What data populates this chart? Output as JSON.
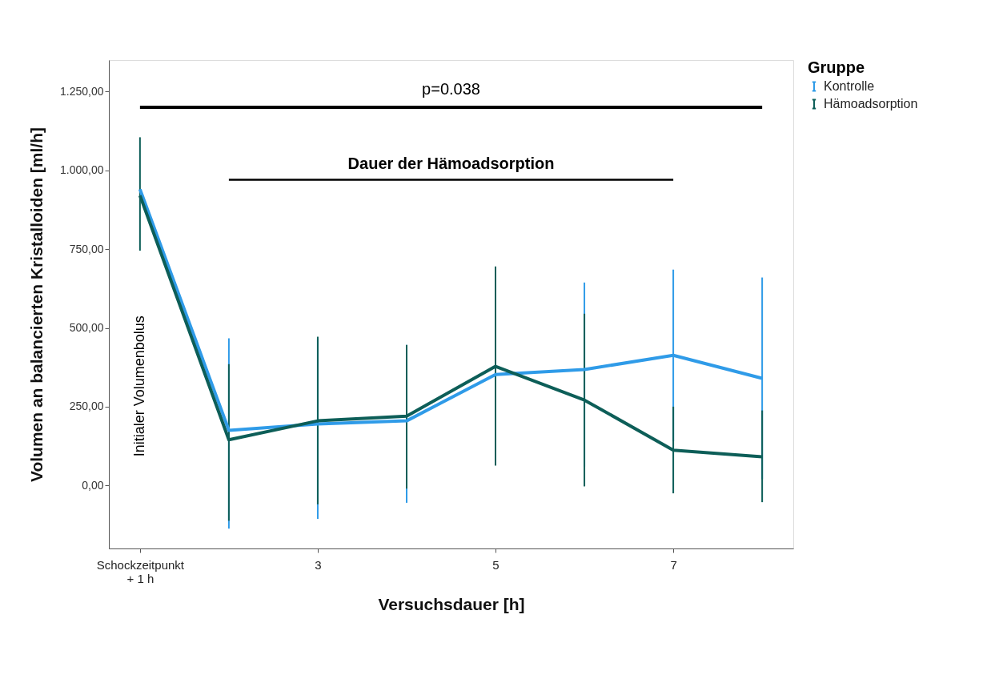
{
  "chart_data": {
    "type": "line",
    "categories": [
      "Schockzeitpunkt\n+ 1 h",
      null,
      "3",
      null,
      "5",
      null,
      "7",
      null
    ],
    "xlabel": "Versuchsdauer [h]",
    "ylabel": "Volumen an balancierten Kristalloiden [ml/h]",
    "legend_title": "Gruppe",
    "legend": "top right",
    "grid": false,
    "marker": "none",
    "line_style": "solid",
    "ylim": [
      -200,
      1350
    ],
    "yticks": [
      {
        "value": 0,
        "label": "0,00"
      },
      {
        "value": 250,
        "label": "250,00"
      },
      {
        "value": 500,
        "label": "500,00"
      },
      {
        "value": 750,
        "label": "750,00"
      },
      {
        "value": 1000,
        "label": "1.000,00"
      },
      {
        "value": 1250,
        "label": "1.250,00"
      }
    ],
    "series": [
      {
        "name": "Kontrolle",
        "color": "#2f9be8",
        "values": [
          940,
          175,
          195,
          205,
          352,
          368,
          413,
          340
        ],
        "errors": [
          null,
          [
            -137,
            467
          ],
          [
            -106,
            465
          ],
          [
            -55,
            446
          ],
          null,
          [
            60,
            644
          ],
          [
            140,
            685
          ],
          [
            20,
            660
          ]
        ]
      },
      {
        "name": "Hämoadsorption",
        "color": "#0d5e58",
        "values": [
          920,
          145,
          205,
          220,
          378,
          271,
          112,
          91
        ],
        "errors": [
          [
            745,
            1105
          ],
          [
            -112,
            385
          ],
          [
            -60,
            472
          ],
          [
            -10,
            446
          ],
          [
            63,
            695
          ],
          [
            -3,
            545
          ],
          [
            -25,
            250
          ],
          [
            -53,
            238
          ]
        ]
      }
    ],
    "ref_lines": [
      {
        "axis": "y",
        "value": 1200,
        "color": "#000000"
      },
      {
        "axis": "y",
        "value": 970,
        "label": "Dauer der Hämoadsorption",
        "color": "#000000"
      }
    ],
    "annotations": [
      "p=0.038",
      "Initialer Volumenbolus"
    ]
  }
}
